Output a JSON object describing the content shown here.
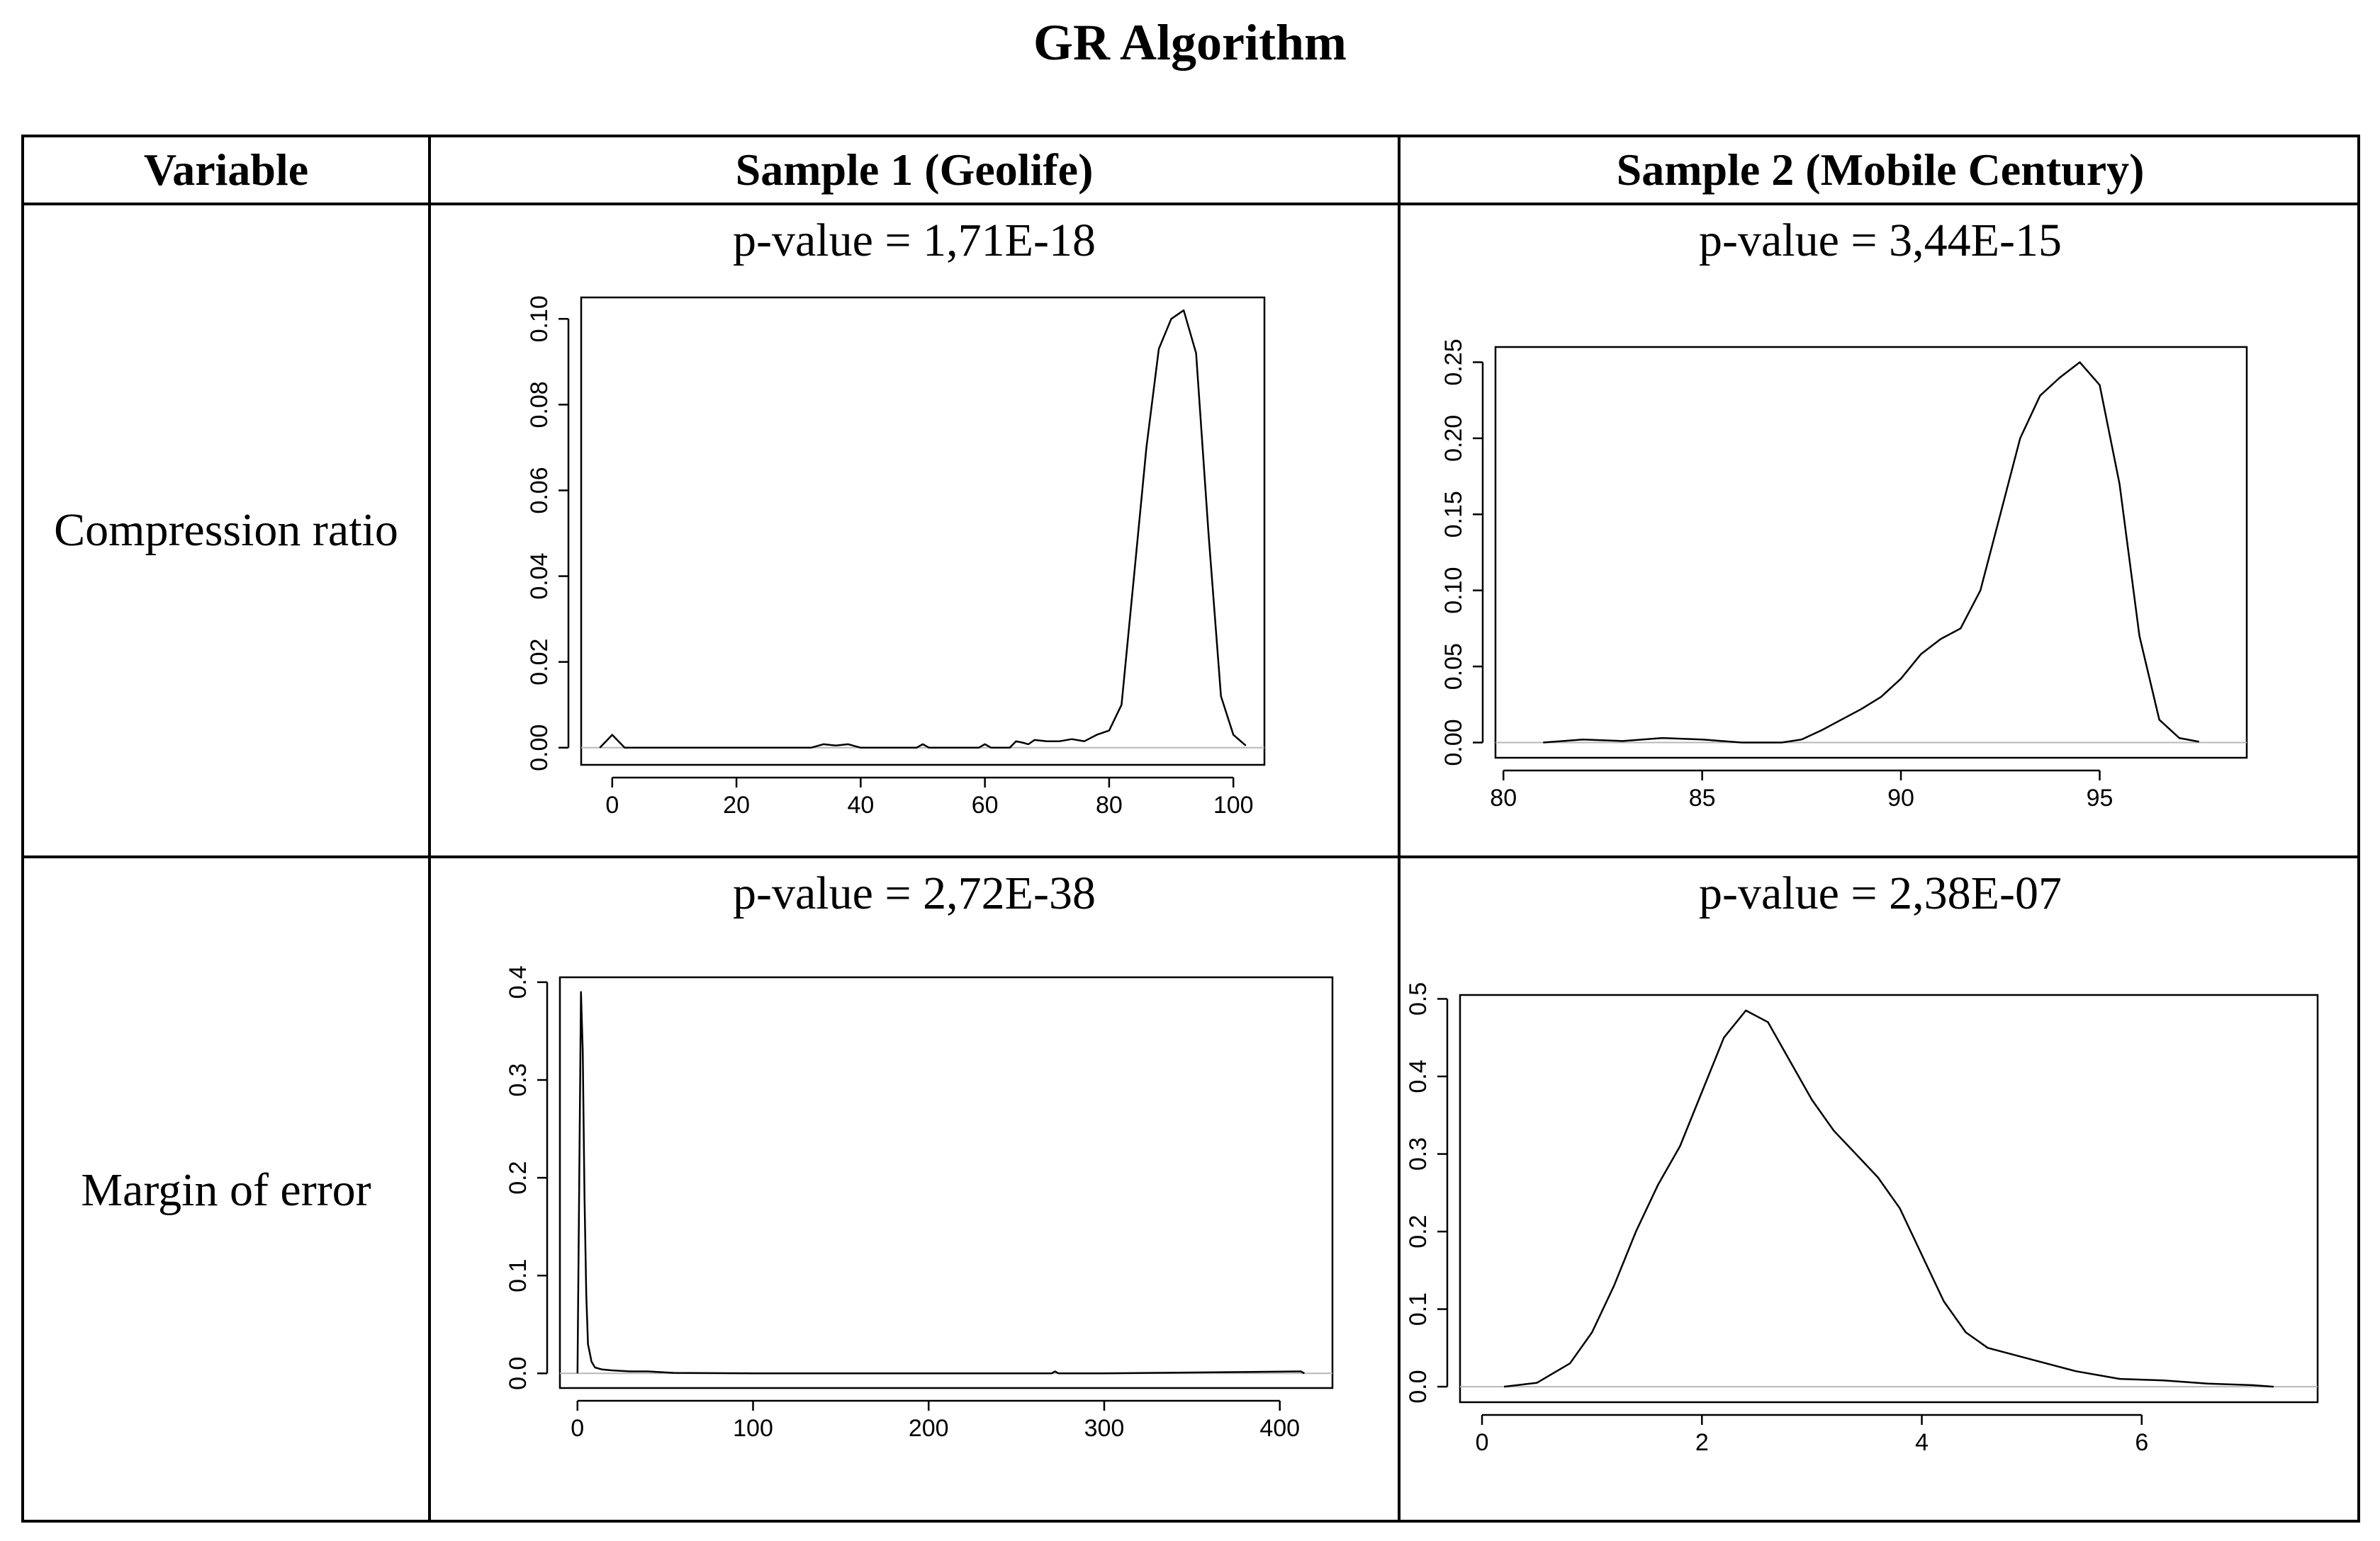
{
  "title": "GR Algorithm",
  "table": {
    "headers": [
      "Variable",
      "Sample 1 (Geolife)",
      "Sample 2 (Mobile Century)"
    ],
    "rows": [
      "Compression ratio",
      "Margin of error"
    ]
  },
  "chart_data": [
    {
      "type": "line",
      "row": "Compression ratio",
      "column": "Sample 1 (Geolife)",
      "pvalue": "p-value = 1,71E-18",
      "xlim": [
        -5,
        105
      ],
      "ylim": [
        -0.004,
        0.105
      ],
      "xticks": [
        0,
        20,
        40,
        60,
        80,
        100
      ],
      "xtick_labels": [
        "0",
        "20",
        "40",
        "60",
        "80",
        "100"
      ],
      "yticks": [
        0,
        0.02,
        0.04,
        0.06,
        0.08,
        0.1
      ],
      "ytick_labels": [
        "0.00",
        "0.02",
        "0.04",
        "0.06",
        "0.08",
        "0.10"
      ],
      "x": [
        -2,
        -1,
        0,
        1,
        2,
        3,
        5,
        32,
        34,
        36,
        38,
        40,
        49,
        50,
        51,
        59,
        60,
        61,
        64,
        65,
        66,
        67,
        68,
        70,
        72,
        74,
        76,
        78,
        80,
        82,
        84,
        86,
        88,
        90,
        92,
        94,
        96,
        98,
        100,
        102
      ],
      "y": [
        0,
        0.0015,
        0.003,
        0.0015,
        0,
        0,
        0,
        0,
        0.0008,
        0.0005,
        0.0008,
        0,
        0,
        0.0008,
        0,
        0,
        0.0008,
        0,
        0,
        0.0015,
        0.0012,
        0.0008,
        0.0018,
        0.0015,
        0.0015,
        0.002,
        0.0015,
        0.003,
        0.004,
        0.01,
        0.04,
        0.07,
        0.093,
        0.1,
        0.102,
        0.092,
        0.05,
        0.012,
        0.003,
        0.0005
      ]
    },
    {
      "type": "line",
      "row": "Compression ratio",
      "column": "Sample 2 (Mobile Century)",
      "pvalue": "p-value = 3,44E-15",
      "xlim": [
        79.8,
        98.7
      ],
      "ylim": [
        -0.01,
        0.26
      ],
      "xticks": [
        80,
        85,
        90,
        95
      ],
      "xtick_labels": [
        "80",
        "85",
        "90",
        "95"
      ],
      "yticks": [
        0,
        0.05,
        0.1,
        0.15,
        0.2,
        0.25
      ],
      "ytick_labels": [
        "0.00",
        "0.05",
        "0.10",
        "0.15",
        "0.20",
        "0.25"
      ],
      "x": [
        81,
        82,
        83,
        84,
        85,
        85.5,
        86,
        87,
        87.5,
        88,
        88.5,
        89,
        89.5,
        90,
        90.5,
        91,
        91.5,
        92,
        92.5,
        93,
        93.5,
        94,
        94.5,
        95,
        95.5,
        96,
        96.5,
        97,
        97.5
      ],
      "y": [
        0,
        0.002,
        0.001,
        0.003,
        0.002,
        0.001,
        0,
        0,
        0.002,
        0.008,
        0.015,
        0.022,
        0.03,
        0.042,
        0.058,
        0.068,
        0.075,
        0.1,
        0.15,
        0.2,
        0.228,
        0.24,
        0.25,
        0.235,
        0.17,
        0.07,
        0.015,
        0.003,
        0.0005
      ]
    },
    {
      "type": "line",
      "row": "Margin of error",
      "column": "Sample 1 (Geolife)",
      "pvalue": "p-value = 2,72E-38",
      "xlim": [
        -10,
        430
      ],
      "ylim": [
        -0.015,
        0.405
      ],
      "xticks": [
        0,
        100,
        200,
        300,
        400
      ],
      "xtick_labels": [
        "0",
        "100",
        "200",
        "300",
        "400"
      ],
      "yticks": [
        0,
        0.1,
        0.2,
        0.3,
        0.4
      ],
      "ytick_labels": [
        "0.0",
        "0.1",
        "0.2",
        "0.3",
        "0.4"
      ],
      "x": [
        0,
        1,
        2,
        3,
        4,
        5,
        6,
        8,
        10,
        14,
        20,
        30,
        40,
        55,
        100,
        270,
        272,
        274,
        300,
        412,
        414
      ],
      "y": [
        0.0,
        0.2,
        0.39,
        0.33,
        0.18,
        0.08,
        0.03,
        0.012,
        0.006,
        0.004,
        0.003,
        0.002,
        0.002,
        0.0005,
        0,
        0,
        0.002,
        0,
        0,
        0.002,
        0
      ]
    },
    {
      "type": "line",
      "row": "Margin of error",
      "column": "Sample 2 (Mobile Century)",
      "pvalue": "p-value = 2,38E-07",
      "xlim": [
        -0.2,
        7.6
      ],
      "ylim": [
        -0.02,
        0.505
      ],
      "xticks": [
        0,
        2,
        4,
        6
      ],
      "xtick_labels": [
        "0",
        "2",
        "4",
        "6"
      ],
      "yticks": [
        0,
        0.1,
        0.2,
        0.3,
        0.4,
        0.5
      ],
      "ytick_labels": [
        "0.0",
        "0.1",
        "0.2",
        "0.3",
        "0.4",
        "0.5"
      ],
      "x": [
        0.2,
        0.5,
        0.8,
        1.0,
        1.2,
        1.4,
        1.6,
        1.8,
        2.0,
        2.2,
        2.4,
        2.6,
        2.8,
        3.0,
        3.2,
        3.4,
        3.6,
        3.8,
        4.0,
        4.2,
        4.4,
        4.6,
        5.0,
        5.4,
        5.8,
        6.2,
        6.6,
        7.0,
        7.2
      ],
      "y": [
        0.0,
        0.005,
        0.03,
        0.07,
        0.13,
        0.2,
        0.26,
        0.31,
        0.38,
        0.45,
        0.485,
        0.47,
        0.42,
        0.37,
        0.33,
        0.3,
        0.27,
        0.23,
        0.17,
        0.11,
        0.07,
        0.05,
        0.035,
        0.02,
        0.01,
        0.008,
        0.004,
        0.002,
        0.0
      ]
    }
  ]
}
